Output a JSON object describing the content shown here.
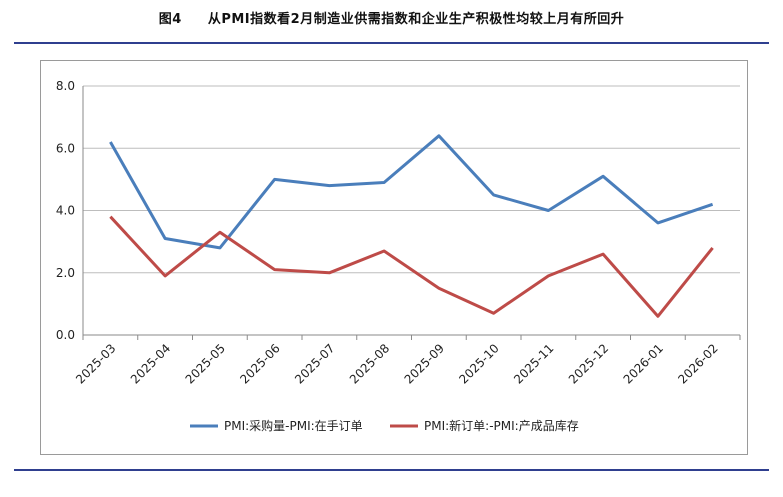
{
  "figure": {
    "number": "图4",
    "title": "从PMI指数看2月制造业供需指数和企业生产积极性均较上月有所回升"
  },
  "colors": {
    "rule": "#2f3f8f",
    "series_blue": "#4a7ebb",
    "series_red": "#be4b48",
    "grid": "#bdbdbd"
  },
  "chart_data": {
    "type": "line",
    "title": "",
    "xlabel": "",
    "ylabel": "",
    "ylim": [
      0,
      8
    ],
    "yticks": [
      "0.0",
      "2.0",
      "4.0",
      "6.0",
      "8.0"
    ],
    "grid": true,
    "legend_position": "bottom",
    "categories": [
      "2025-03",
      "2025-04",
      "2025-05",
      "2025-06",
      "2025-07",
      "2025-08",
      "2025-09",
      "2025-10",
      "2025-11",
      "2025-12",
      "2026-01",
      "2026-02"
    ],
    "series": [
      {
        "name": "PMI:采购量-PMI:在手订单",
        "values": [
          6.2,
          3.1,
          2.8,
          5.0,
          4.8,
          4.9,
          6.4,
          4.5,
          4.0,
          5.1,
          3.6,
          4.2
        ]
      },
      {
        "name": "PMI:新订单:-PMI:产成品库存",
        "values": [
          3.8,
          1.9,
          3.3,
          2.1,
          2.0,
          2.7,
          1.5,
          0.7,
          1.9,
          2.6,
          0.6,
          2.8
        ]
      }
    ]
  }
}
